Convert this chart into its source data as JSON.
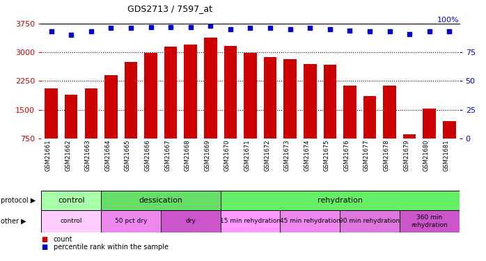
{
  "title": "GDS2713 / 7597_at",
  "samples": [
    "GSM21661",
    "GSM21662",
    "GSM21663",
    "GSM21664",
    "GSM21665",
    "GSM21666",
    "GSM21667",
    "GSM21668",
    "GSM21669",
    "GSM21670",
    "GSM21671",
    "GSM21672",
    "GSM21673",
    "GSM21674",
    "GSM21675",
    "GSM21676",
    "GSM21677",
    "GSM21678",
    "GSM21679",
    "GSM21680",
    "GSM21681"
  ],
  "counts": [
    2050,
    1900,
    2050,
    2400,
    2750,
    2980,
    3150,
    3200,
    3380,
    3170,
    2990,
    2870,
    2820,
    2700,
    2680,
    2120,
    1850,
    2130,
    850,
    1530,
    1200
  ],
  "percentile": [
    93,
    90,
    93,
    96,
    96,
    97,
    97,
    97,
    98,
    95,
    96,
    96,
    95,
    96,
    95,
    94,
    93,
    93,
    91,
    93,
    93
  ],
  "ylim_left": [
    750,
    3750
  ],
  "ylim_right": [
    0,
    100
  ],
  "yticks_left": [
    750,
    1500,
    2250,
    3000,
    3750
  ],
  "yticks_right": [
    0,
    25,
    50,
    75
  ],
  "bar_color": "#cc0000",
  "dot_color": "#0000cc",
  "protocol_groups": [
    {
      "label": "control",
      "start": 0,
      "end": 3,
      "color": "#aaffaa"
    },
    {
      "label": "dessication",
      "start": 3,
      "end": 9,
      "color": "#66dd66"
    },
    {
      "label": "rehydration",
      "start": 9,
      "end": 21,
      "color": "#66ee66"
    }
  ],
  "other_groups": [
    {
      "label": "control",
      "start": 0,
      "end": 3,
      "color": "#ffccff"
    },
    {
      "label": "50 pct dry",
      "start": 3,
      "end": 6,
      "color": "#ee88ee"
    },
    {
      "label": "dry",
      "start": 6,
      "end": 9,
      "color": "#cc55cc"
    },
    {
      "label": "15 min rehydration",
      "start": 9,
      "end": 12,
      "color": "#ff99ff"
    },
    {
      "label": "45 min rehydration",
      "start": 12,
      "end": 15,
      "color": "#ee88ee"
    },
    {
      "label": "90 min rehydration",
      "start": 15,
      "end": 18,
      "color": "#dd77dd"
    },
    {
      "label": "360 min\nrehydration",
      "start": 18,
      "end": 21,
      "color": "#cc55cc"
    }
  ],
  "background_color": "#ffffff",
  "grid_color": "#555555",
  "axis_label_color_left": "#cc0000",
  "axis_label_color_right": "#0000cc",
  "fig_width": 6.98,
  "fig_height": 3.75
}
